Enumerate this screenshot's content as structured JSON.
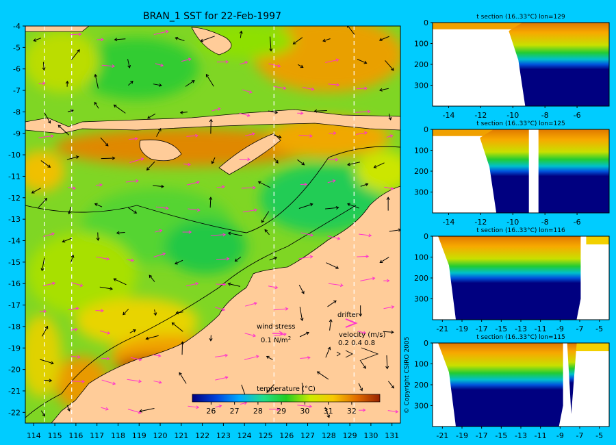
{
  "title": "BRAN_1 SST for 22-Feb-1997",
  "colors": {
    "background": "#00ccff",
    "land": "#ffcc99",
    "deep_water": "#000080",
    "wind_vector": "#000000",
    "current_vector": "#ff33cc"
  },
  "map_panel": {
    "x_ticks": [
      "114",
      "115",
      "116",
      "117",
      "118",
      "119",
      "120",
      "121",
      "122",
      "123",
      "124",
      "125",
      "126",
      "127",
      "128",
      "129",
      "130",
      "131"
    ],
    "y_ticks": [
      "-4",
      "-5",
      "-6",
      "-7",
      "-8",
      "-9",
      "-10",
      "-11",
      "-12",
      "-13",
      "-14",
      "-15",
      "-16",
      "-17",
      "-18",
      "-19",
      "-20",
      "-21",
      "-22"
    ],
    "xlim": [
      113.6,
      131.4
    ],
    "ylim": [
      -22.5,
      -4
    ],
    "section_lines_lon": [
      114.5,
      115.8,
      125.4,
      129.2
    ],
    "legend": {
      "wind_stress_label": "wind stress",
      "wind_stress_value": "0.1 N/m",
      "wind_stress_superscript": "2",
      "drifter_label": "drifter",
      "velocity_label": "velocity (m/s)",
      "velocity_values": "0.2 0.4 0.8"
    },
    "colorbar": {
      "title": "temperature (°C)",
      "tick_labels": [
        "26",
        "27",
        "28",
        "29",
        "30",
        "31",
        "32"
      ],
      "range": [
        25.2,
        33.2
      ]
    }
  },
  "copyright": "© Copyright CSIRO 2005",
  "chart_data": [
    {
      "type": "heatmap",
      "title": "BRAN_1 SST for 22-Feb-1997",
      "xlim": [
        113.6,
        131.4
      ],
      "ylim": [
        -22.5,
        -4
      ],
      "x_ticks": [
        114,
        115,
        116,
        117,
        118,
        119,
        120,
        121,
        122,
        123,
        124,
        125,
        126,
        127,
        128,
        129,
        130,
        131
      ],
      "y_ticks": [
        -4,
        -5,
        -6,
        -7,
        -8,
        -9,
        -10,
        -11,
        -12,
        -13,
        -14,
        -15,
        -16,
        -17,
        -18,
        -19,
        -20,
        -21,
        -22
      ],
      "value_range": [
        25.2,
        33.2
      ],
      "colorbar_label": "temperature (°C)"
    },
    {
      "type": "heatmap",
      "title": "t section (16..33°C) lon=129",
      "xlim": [
        -15,
        -4
      ],
      "ylim": [
        400,
        0
      ],
      "x_ticks": [
        "-14",
        "-12",
        "-10",
        "-8",
        "-6"
      ],
      "y_ticks": [
        "0",
        "100",
        "200",
        "300"
      ],
      "land_edge_lat": -9.4,
      "thermocline_depth": 180
    },
    {
      "type": "heatmap",
      "title": "t section (16..33°C) lon=125",
      "xlim": [
        -15,
        -4
      ],
      "ylim": [
        400,
        0
      ],
      "x_ticks": [
        "-14",
        "-12",
        "-10",
        "-8",
        "-6"
      ],
      "y_ticks": [
        "0",
        "100",
        "200",
        "300"
      ],
      "land_edge_lat": -11.2,
      "thermocline_depth": 190
    },
    {
      "type": "heatmap",
      "title": "t section (16..33°C) lon=116",
      "xlim": [
        -22,
        -4
      ],
      "ylim": [
        400,
        0
      ],
      "x_ticks": [
        "-21",
        "-19",
        "-17",
        "-15",
        "-13",
        "-11",
        "-9",
        "-7",
        "-5"
      ],
      "y_ticks": [
        "0",
        "100",
        "200",
        "300"
      ],
      "land_edge_lat": -6.9,
      "thermocline_depth": 160
    },
    {
      "type": "heatmap",
      "title": "t section (16..33°C) lon=115",
      "xlim": [
        -22,
        -4
      ],
      "ylim": [
        400,
        0
      ],
      "x_ticks": [
        "-21",
        "-19",
        "-17",
        "-15",
        "-13",
        "-11",
        "-9",
        "-7",
        "-5"
      ],
      "y_ticks": [
        "0",
        "100",
        "200",
        "300"
      ],
      "land_edge_lat": -8.7,
      "thermocline_depth": 165
    }
  ]
}
